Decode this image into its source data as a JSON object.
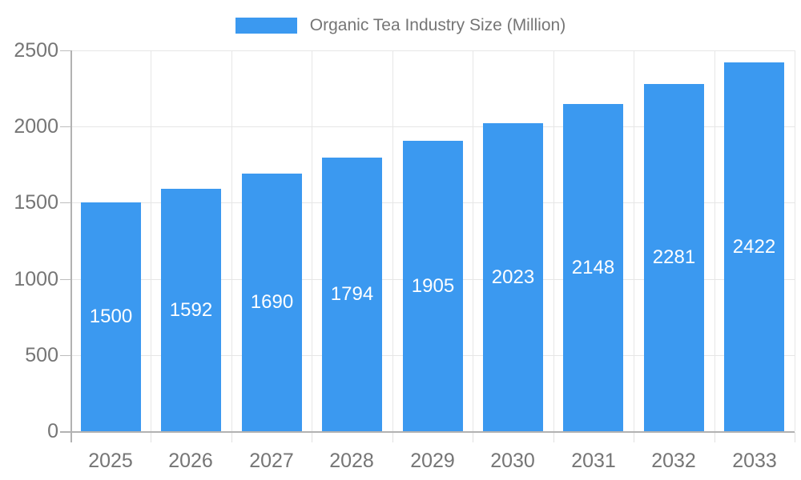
{
  "legend": {
    "items": [
      {
        "label": "Organic Tea Industry Size (Million)",
        "color": "#3b99f0"
      }
    ]
  },
  "colors": {
    "bar": "#3b99f0",
    "text_gray": "#757575",
    "value_text": "#ffffff",
    "grid": "#e6e6e6",
    "axis": "#b2b2b2",
    "x_tick": "#e0e0e0",
    "y_tick": "#bdbdbd",
    "background": "#ffffff"
  },
  "chart_data": {
    "type": "bar",
    "title": "",
    "xlabel": "",
    "ylabel": "",
    "categories": [
      "2025",
      "2026",
      "2027",
      "2028",
      "2029",
      "2030",
      "2031",
      "2032",
      "2033"
    ],
    "series": [
      {
        "name": "Organic Tea Industry Size (Million)",
        "values": [
          1500,
          1592,
          1690,
          1794,
          1905,
          2023,
          2148,
          2281,
          2422
        ]
      }
    ],
    "value_labels": "inside-center",
    "ylim": [
      0,
      2500
    ],
    "yticks": [
      0,
      500,
      1000,
      1500,
      2000,
      2500
    ],
    "grid": true,
    "legend_position": "top"
  }
}
